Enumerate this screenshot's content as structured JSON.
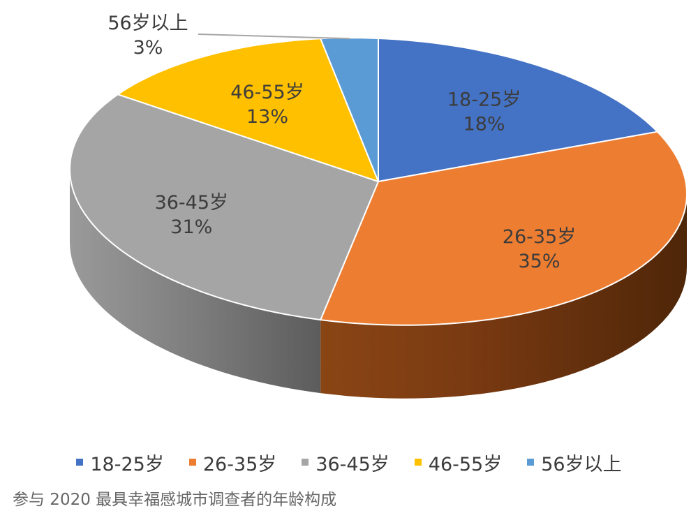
{
  "chart_data": {
    "type": "pie",
    "title": "",
    "categories": [
      "18-25岁",
      "26-35岁",
      "36-45岁",
      "46-55岁",
      "56岁以上"
    ],
    "values": [
      18,
      35,
      31,
      13,
      3
    ],
    "value_labels": [
      "18%",
      "35%",
      "31%",
      "13%",
      "3%"
    ],
    "colors": [
      "#4472C4",
      "#ED7D31",
      "#A5A5A5",
      "#FFC000",
      "#5B9BD5"
    ],
    "legend_position": "bottom",
    "style": "3d-perspective"
  },
  "caption": "参与 2020 最具幸福感城市调查者的年龄构成"
}
